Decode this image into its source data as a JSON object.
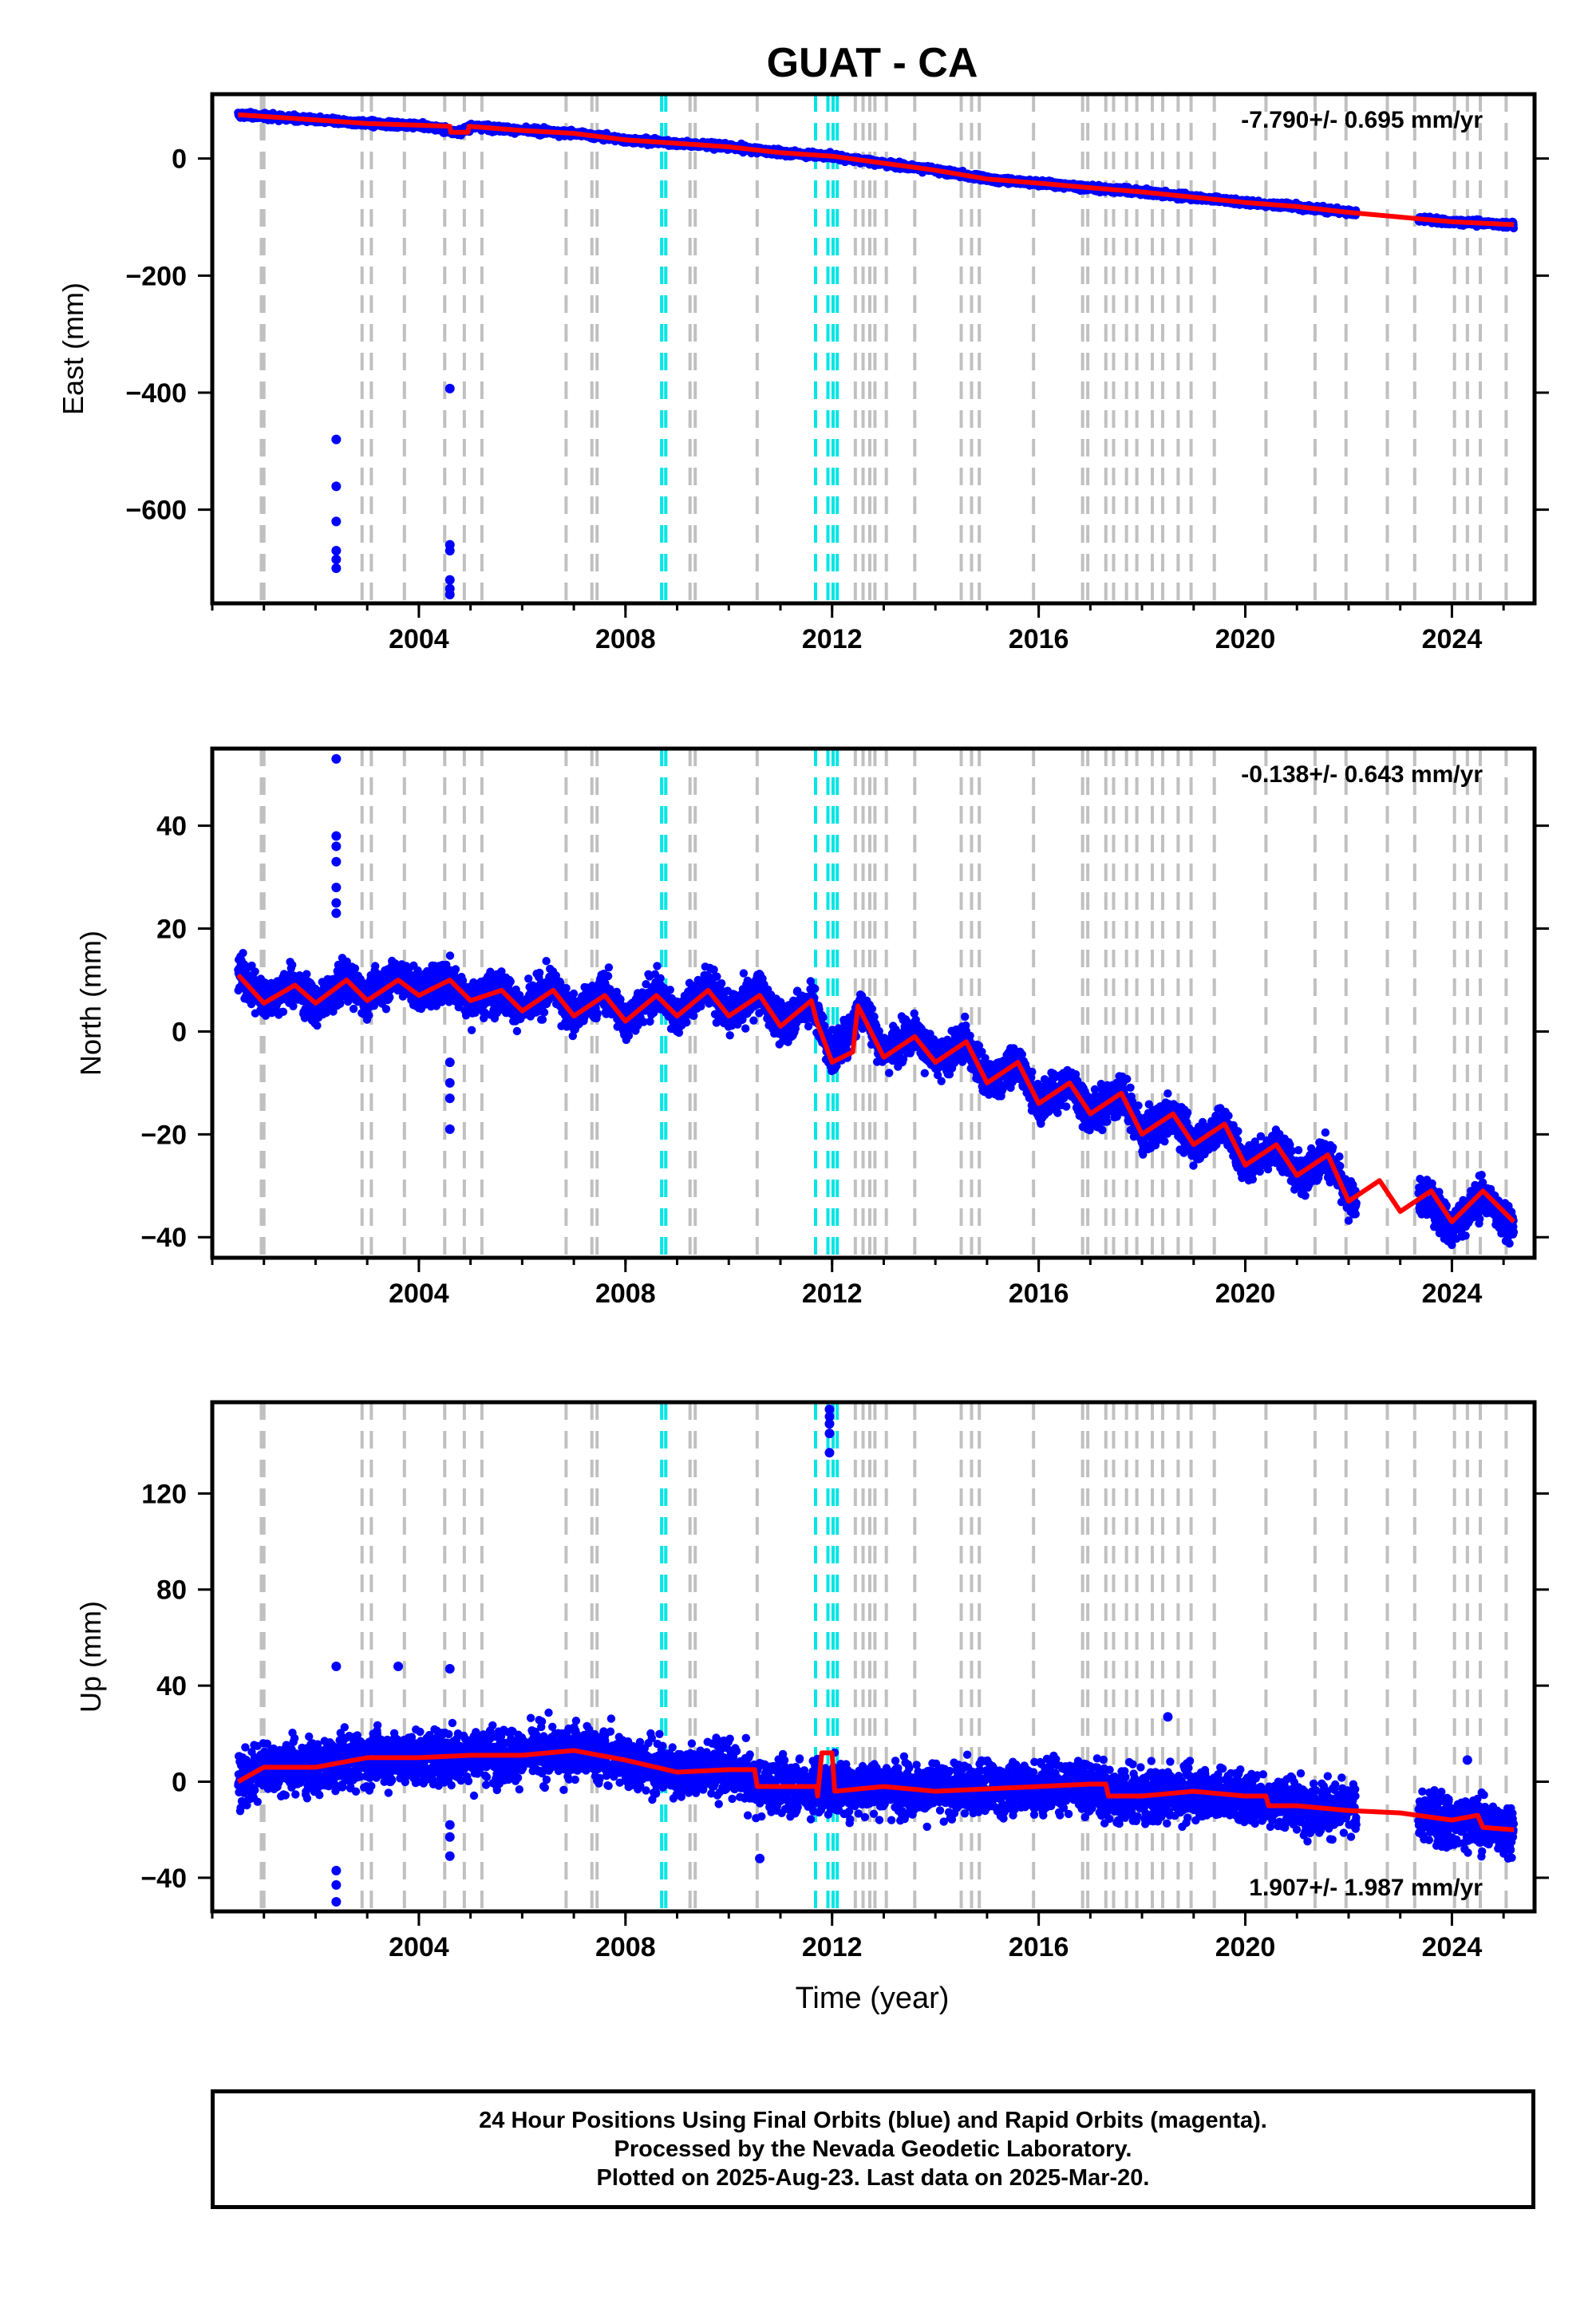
{
  "page_title": "GUAT - CA",
  "x_axis_label": "Time (year)",
  "footer": {
    "line1": "24 Hour Positions Using Final Orbits (blue) and Rapid Orbits (magenta).",
    "line2": "Processed by the Nevada Geodetic Laboratory.",
    "line3": "Plotted on 2025-Aug-23. Last data on 2025-Mar-20."
  },
  "colors": {
    "final_points": "#0000ff",
    "model_line": "#ff0000",
    "equipment_change": "#c0c0c0",
    "earthquake": "#00e5e5"
  },
  "equipment_changes": [
    2000.95,
    2001.0,
    2002.9,
    2003.08,
    2003.72,
    2004.5,
    2004.88,
    2005.22,
    2006.85,
    2007.35,
    2007.45,
    2009.25,
    2009.35,
    2010.55,
    2012.45,
    2012.6,
    2012.73,
    2012.83,
    2013.05,
    2013.6,
    2014.5,
    2014.7,
    2014.85,
    2015.9,
    2016.85,
    2016.95,
    2017.3,
    2017.45,
    2017.7,
    2017.9,
    2018.2,
    2018.4,
    2018.7,
    2018.95,
    2019.4,
    2020.4,
    2021.35,
    2021.95,
    2022.75,
    2023.28,
    2024.05,
    2024.3,
    2024.55,
    2025.05
  ],
  "earthquakes": [
    2008.7,
    2008.78,
    2011.68,
    2011.92,
    2012.02,
    2012.1
  ],
  "chart_data": [
    {
      "type": "scatter",
      "component": "east",
      "title": "GUAT - CA",
      "xlabel": "",
      "ylabel": "East (mm)",
      "xlim": [
        2000.0,
        2025.6
      ],
      "ylim": [
        -760,
        110
      ],
      "xticks": [
        2004,
        2008,
        2012,
        2016,
        2020,
        2024
      ],
      "yticks": [
        -600,
        -400,
        -200,
        0
      ],
      "velocity_label": "-7.790+/- 0.695 mm/yr",
      "velocity_position": "top-right",
      "series": [
        {
          "values": [
            [
              2000.5,
              75
            ],
            [
              2001.0,
              72
            ],
            [
              2002.0,
              66
            ],
            [
              2003.0,
              60
            ],
            [
              2004.0,
              57
            ],
            [
              2004.8,
              45
            ],
            [
              2005.0,
              55
            ],
            [
              2006.0,
              48
            ],
            [
              2007.0,
              43
            ],
            [
              2008.0,
              32
            ],
            [
              2009.0,
              26
            ],
            [
              2010.0,
              20
            ],
            [
              2011.0,
              10
            ],
            [
              2012.0,
              4
            ],
            [
              2013.0,
              -8
            ],
            [
              2014.0,
              -20
            ],
            [
              2015.0,
              -35
            ],
            [
              2016.0,
              -42
            ],
            [
              2017.0,
              -50
            ],
            [
              2018.0,
              -57
            ],
            [
              2019.0,
              -66
            ],
            [
              2020.0,
              -75
            ],
            [
              2021.0,
              -82
            ],
            [
              2022.0,
              -92
            ],
            [
              2023.0,
              -100
            ],
            [
              2024.0,
              -108
            ],
            [
              2025.2,
              -113
            ]
          ]
        },
        {
          "values": [
            [
              2002.4,
              -480
            ],
            [
              2002.4,
              -560
            ],
            [
              2002.4,
              -620
            ],
            [
              2002.4,
              -670
            ],
            [
              2002.4,
              -685
            ],
            [
              2002.4,
              -700
            ],
            [
              2004.6,
              -393
            ],
            [
              2004.6,
              -660
            ],
            [
              2004.6,
              -670
            ],
            [
              2004.6,
              -720
            ],
            [
              2004.6,
              -735
            ],
            [
              2004.6,
              -745
            ]
          ]
        }
      ],
      "model": [
        [
          2000.5,
          75
        ],
        [
          2001.0,
          72
        ],
        [
          2002.0,
          66
        ],
        [
          2003.0,
          60
        ],
        [
          2004.0,
          57
        ],
        [
          2004.6,
          55
        ],
        [
          2004.62,
          45
        ],
        [
          2004.95,
          45
        ],
        [
          2004.97,
          55
        ],
        [
          2006.0,
          48
        ],
        [
          2007.0,
          43
        ],
        [
          2008.0,
          32
        ],
        [
          2009.0,
          26
        ],
        [
          2010.0,
          20
        ],
        [
          2011.0,
          10
        ],
        [
          2012.0,
          4
        ],
        [
          2013.0,
          -8
        ],
        [
          2014.0,
          -20
        ],
        [
          2015.0,
          -35
        ],
        [
          2016.0,
          -42
        ],
        [
          2017.0,
          -50
        ],
        [
          2018.0,
          -57
        ],
        [
          2019.0,
          -66
        ],
        [
          2020.0,
          -75
        ],
        [
          2021.0,
          -82
        ],
        [
          2022.0,
          -92
        ],
        [
          2023.0,
          -100
        ],
        [
          2024.0,
          -108
        ],
        [
          2025.2,
          -113
        ]
      ],
      "grid": false,
      "legend": "none"
    },
    {
      "type": "scatter",
      "component": "north",
      "xlabel": "",
      "ylabel": "North (mm)",
      "xlim": [
        2000.0,
        2025.6
      ],
      "ylim": [
        -44,
        55
      ],
      "xticks": [
        2004,
        2008,
        2012,
        2016,
        2020,
        2024
      ],
      "yticks": [
        -40,
        -20,
        0,
        20,
        40
      ],
      "velocity_label": "-0.138+/- 0.643 mm/yr",
      "velocity_position": "top-right",
      "series": [
        {
          "values": [
            [
              2000.5,
              12
            ],
            [
              2001.0,
              6
            ],
            [
              2001.6,
              9
            ],
            [
              2002.0,
              5
            ],
            [
              2002.6,
              10
            ],
            [
              2003.0,
              7
            ],
            [
              2003.6,
              11
            ],
            [
              2004.0,
              8
            ],
            [
              2004.6,
              10
            ],
            [
              2005.0,
              6
            ],
            [
              2005.6,
              8
            ],
            [
              2006.0,
              4
            ],
            [
              2006.6,
              9
            ],
            [
              2007.0,
              3
            ],
            [
              2007.6,
              8
            ],
            [
              2008.0,
              2
            ],
            [
              2008.6,
              8
            ],
            [
              2009.0,
              3
            ],
            [
              2009.6,
              9
            ],
            [
              2010.0,
              3
            ],
            [
              2010.6,
              8
            ],
            [
              2011.0,
              1
            ],
            [
              2011.6,
              6
            ],
            [
              2012.0,
              -5
            ],
            [
              2012.6,
              5
            ],
            [
              2013.0,
              -4
            ],
            [
              2013.6,
              0
            ],
            [
              2014.0,
              -6
            ],
            [
              2014.6,
              -2
            ],
            [
              2015.0,
              -10
            ],
            [
              2015.6,
              -6
            ],
            [
              2016.0,
              -14
            ],
            [
              2016.6,
              -10
            ],
            [
              2017.0,
              -16
            ],
            [
              2017.6,
              -12
            ],
            [
              2018.0,
              -20
            ],
            [
              2018.6,
              -16
            ],
            [
              2019.0,
              -22
            ],
            [
              2019.6,
              -18
            ],
            [
              2020.0,
              -26
            ],
            [
              2020.6,
              -22
            ],
            [
              2021.0,
              -28
            ],
            [
              2021.6,
              -24
            ],
            [
              2022.0,
              -33
            ],
            [
              2023.5,
              -32
            ],
            [
              2024.0,
              -38
            ],
            [
              2024.6,
              -32
            ],
            [
              2025.2,
              -38
            ]
          ]
        },
        {
          "values": [
            [
              2002.4,
              53
            ],
            [
              2002.4,
              38
            ],
            [
              2002.4,
              36
            ],
            [
              2002.4,
              33
            ],
            [
              2002.4,
              28
            ],
            [
              2002.4,
              25
            ],
            [
              2002.4,
              23
            ],
            [
              2004.6,
              -6
            ],
            [
              2004.6,
              -10
            ],
            [
              2004.6,
              -13
            ],
            [
              2004.6,
              -19
            ]
          ]
        }
      ],
      "model": [
        [
          2000.5,
          11
        ],
        [
          2001.0,
          5.5
        ],
        [
          2001.6,
          9
        ],
        [
          2002.0,
          5.5
        ],
        [
          2002.6,
          10
        ],
        [
          2003.0,
          6
        ],
        [
          2003.6,
          10
        ],
        [
          2004.0,
          7
        ],
        [
          2004.6,
          10
        ],
        [
          2005.0,
          6
        ],
        [
          2005.6,
          8
        ],
        [
          2006.0,
          4
        ],
        [
          2006.6,
          8
        ],
        [
          2007.0,
          3
        ],
        [
          2007.6,
          7
        ],
        [
          2008.0,
          2
        ],
        [
          2008.6,
          7
        ],
        [
          2009.0,
          3
        ],
        [
          2009.6,
          8
        ],
        [
          2010.0,
          3
        ],
        [
          2010.6,
          7
        ],
        [
          2011.0,
          1
        ],
        [
          2011.6,
          6
        ],
        [
          2011.7,
          2
        ],
        [
          2012.0,
          -6
        ],
        [
          2012.4,
          -4
        ],
        [
          2012.5,
          5
        ],
        [
          2013.0,
          -5
        ],
        [
          2013.6,
          -1
        ],
        [
          2014.0,
          -6
        ],
        [
          2014.6,
          -2
        ],
        [
          2015.0,
          -10
        ],
        [
          2015.6,
          -6
        ],
        [
          2016.0,
          -14
        ],
        [
          2016.6,
          -10
        ],
        [
          2017.0,
          -16
        ],
        [
          2017.6,
          -12
        ],
        [
          2018.0,
          -20
        ],
        [
          2018.6,
          -16
        ],
        [
          2019.0,
          -22
        ],
        [
          2019.6,
          -18
        ],
        [
          2020.0,
          -26
        ],
        [
          2020.6,
          -22
        ],
        [
          2021.0,
          -28
        ],
        [
          2021.6,
          -24
        ],
        [
          2022.0,
          -33
        ],
        [
          2022.6,
          -29
        ],
        [
          2023.0,
          -35
        ],
        [
          2023.6,
          -31
        ],
        [
          2024.0,
          -37
        ],
        [
          2024.6,
          -31
        ],
        [
          2025.2,
          -37
        ]
      ],
      "grid": false,
      "legend": "none"
    },
    {
      "type": "scatter",
      "component": "up",
      "xlabel": "Time (year)",
      "ylabel": "Up (mm)",
      "xlim": [
        2000.0,
        2025.6
      ],
      "ylim": [
        -54,
        158
      ],
      "xticks": [
        2004,
        2008,
        2012,
        2016,
        2020,
        2024
      ],
      "yticks": [
        -40,
        0,
        40,
        80,
        120
      ],
      "velocity_label": "1.907+/- 1.987 mm/yr",
      "velocity_position": "bottom-right",
      "series": [
        {
          "values": [
            [
              2000.5,
              0
            ],
            [
              2001.0,
              6
            ],
            [
              2002.0,
              6
            ],
            [
              2003.0,
              10
            ],
            [
              2004.0,
              10
            ],
            [
              2005.0,
              11
            ],
            [
              2006.0,
              11
            ],
            [
              2007.0,
              13
            ],
            [
              2008.0,
              9
            ],
            [
              2009.0,
              4
            ],
            [
              2010.0,
              5
            ],
            [
              2010.6,
              -2
            ],
            [
              2011.0,
              -2
            ],
            [
              2012.0,
              -3
            ],
            [
              2013.0,
              -2
            ],
            [
              2014.0,
              -4
            ],
            [
              2015.0,
              -3
            ],
            [
              2016.0,
              -2
            ],
            [
              2017.0,
              -1
            ],
            [
              2017.5,
              -6
            ],
            [
              2018.0,
              -6
            ],
            [
              2019.0,
              -4
            ],
            [
              2020.0,
              -6
            ],
            [
              2021.0,
              -10
            ],
            [
              2022.0,
              -12
            ],
            [
              2023.5,
              -14
            ],
            [
              2024.0,
              -16
            ],
            [
              2025.2,
              -20
            ]
          ]
        },
        {
          "values": [
            [
              2002.4,
              48
            ],
            [
              2002.4,
              -37
            ],
            [
              2002.4,
              -43
            ],
            [
              2002.4,
              -50
            ],
            [
              2003.6,
              48
            ],
            [
              2004.6,
              47
            ],
            [
              2004.6,
              -18
            ],
            [
              2004.6,
              -23
            ],
            [
              2004.6,
              -31
            ],
            [
              2010.6,
              -32
            ],
            [
              2011.95,
              155
            ],
            [
              2011.95,
              152
            ],
            [
              2011.95,
              149
            ],
            [
              2011.95,
              145
            ],
            [
              2011.95,
              137
            ],
            [
              2018.5,
              27
            ],
            [
              2024.3,
              9
            ]
          ]
        }
      ],
      "model": [
        [
          2000.5,
          0
        ],
        [
          2001.0,
          6
        ],
        [
          2002.0,
          6
        ],
        [
          2003.0,
          10
        ],
        [
          2004.0,
          10
        ],
        [
          2005.0,
          11
        ],
        [
          2006.0,
          11
        ],
        [
          2007.0,
          13
        ],
        [
          2008.0,
          9
        ],
        [
          2009.0,
          4
        ],
        [
          2010.0,
          5
        ],
        [
          2010.5,
          5
        ],
        [
          2010.55,
          -2
        ],
        [
          2011.7,
          -2
        ],
        [
          2011.72,
          -6
        ],
        [
          2011.8,
          12
        ],
        [
          2012.0,
          12
        ],
        [
          2012.05,
          -4
        ],
        [
          2013.0,
          -2
        ],
        [
          2014.0,
          -4
        ],
        [
          2015.0,
          -3
        ],
        [
          2016.0,
          -2
        ],
        [
          2017.0,
          -1
        ],
        [
          2017.3,
          -1
        ],
        [
          2017.35,
          -6
        ],
        [
          2018.0,
          -6
        ],
        [
          2019.0,
          -4
        ],
        [
          2020.0,
          -6
        ],
        [
          2020.4,
          -6
        ],
        [
          2020.45,
          -10
        ],
        [
          2021.0,
          -10
        ],
        [
          2022.0,
          -12
        ],
        [
          2023.0,
          -13
        ],
        [
          2024.0,
          -16
        ],
        [
          2024.5,
          -14
        ],
        [
          2024.6,
          -19
        ],
        [
          2025.2,
          -20
        ]
      ],
      "grid": false,
      "legend": "none"
    }
  ]
}
